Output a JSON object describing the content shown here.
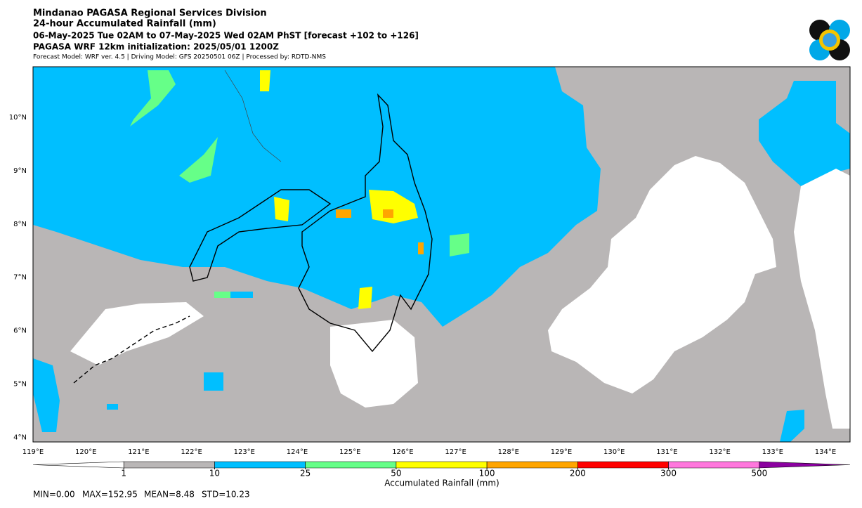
{
  "header": {
    "title": "Mindanao PAGASA Regional Services Division",
    "subtitle": "24-hour Accumulated Rainfall (mm)",
    "period": "06-May-2025 Tue 02AM to 07-May-2025 Wed 02AM PhST [forecast +102 to +126]",
    "init": "PAGASA WRF 12km initialization: 2025/05/01 1200Z",
    "info": "Forecast Model: WRF ver. 4.5 | Driving Model: GFS 20250501 06Z | Processed by: RDTD-NMS"
  },
  "map": {
    "lat_labels": [
      "10°N",
      "9°N",
      "8°N",
      "7°N",
      "6°N",
      "5°N",
      "4°N"
    ],
    "lon_labels": [
      "119°E",
      "120°E",
      "121°E",
      "122°E",
      "123°E",
      "124°E",
      "125°E",
      "126°E",
      "127°E",
      "128°E",
      "129°E",
      "130°E",
      "131°E",
      "132°E",
      "133°E",
      "134°E"
    ]
  },
  "colorbar": {
    "label": "Accumulated Rainfall (mm)",
    "levels": [
      1,
      10,
      25,
      50,
      100,
      200,
      300,
      500
    ],
    "colors": [
      "#ffffff",
      "#b9b6b6",
      "#00bfff",
      "#66ff88",
      "#ffff00",
      "#ffa500",
      "#ff0000",
      "#ff77dd",
      "#8b00a0"
    ]
  },
  "stats": [
    "MIN=0.00",
    "MAX=152.95",
    "MEAN=8.48",
    "STD=10.23"
  ]
}
